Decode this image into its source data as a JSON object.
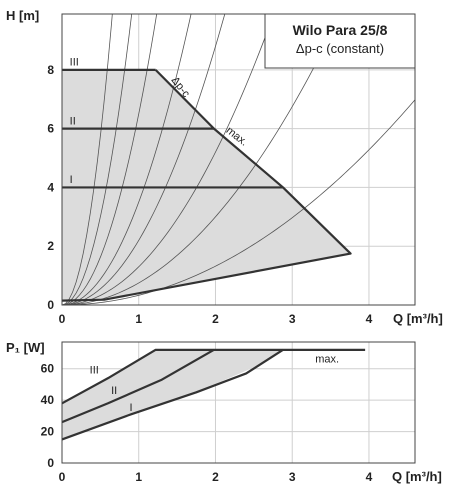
{
  "chart_data": [
    {
      "type": "area",
      "title": "Wilo Para 25/8",
      "subtitle": "Δp-c (constant)",
      "xlabel": "Q [m³/h]",
      "ylabel": "H [m]",
      "xlim": [
        0,
        4.6
      ],
      "ylim": [
        0,
        9.9
      ],
      "xticks": [
        "0",
        "1",
        "2",
        "3",
        "4"
      ],
      "yticks": [
        "0",
        "2",
        "4",
        "6",
        "8"
      ],
      "grid": true,
      "region": [
        [
          0,
          8
        ],
        [
          1.22,
          8
        ],
        [
          1.98,
          6
        ],
        [
          2.88,
          4
        ],
        [
          3.76,
          1.75
        ],
        [
          0.55,
          0.18
        ],
        [
          0,
          0.15
        ]
      ],
      "series": [
        {
          "name": "III",
          "x": [
            0,
            1.22
          ],
          "y": [
            8,
            8
          ]
        },
        {
          "name": "II",
          "x": [
            0,
            1.98
          ],
          "y": [
            6,
            6
          ]
        },
        {
          "name": "I",
          "x": [
            0,
            2.88
          ],
          "y": [
            4,
            4
          ]
        },
        {
          "name": "max.",
          "x": [
            1.22,
            1.98,
            2.88,
            3.76,
            0.55,
            0
          ],
          "y": [
            8,
            6,
            4,
            1.75,
            0.18,
            0.15
          ]
        }
      ],
      "system_curves_k": [
        0.33,
        0.75,
        1.3,
        2.2,
        3.5,
        6.5,
        12,
        23
      ],
      "annotations": [
        "Δp-c",
        "max."
      ]
    },
    {
      "type": "area",
      "xlabel": "Q [m³/h]",
      "ylabel": "P₁ [W]",
      "xlim": [
        0,
        4.6
      ],
      "ylim": [
        0,
        77
      ],
      "xticks": [
        "0",
        "1",
        "2",
        "3",
        "4"
      ],
      "yticks": [
        "0",
        "20",
        "40",
        "60"
      ],
      "grid": true,
      "region": [
        [
          0,
          38
        ],
        [
          1.22,
          72
        ],
        [
          2.88,
          72
        ],
        [
          2.6,
          63
        ],
        [
          1.75,
          45
        ],
        [
          0.9,
          31
        ],
        [
          0,
          15
        ]
      ],
      "series": [
        {
          "name": "III",
          "x": [
            0,
            0.6,
            1.22,
            3.95
          ],
          "y": [
            38,
            54,
            72,
            72
          ]
        },
        {
          "name": "II",
          "x": [
            0,
            0.6,
            1.3,
            1.98
          ],
          "y": [
            26,
            38,
            53,
            72
          ]
        },
        {
          "name": "I",
          "x": [
            0,
            0.9,
            1.75,
            2.4,
            2.88
          ],
          "y": [
            15,
            31,
            45,
            57,
            72
          ]
        }
      ],
      "max_label": "max."
    }
  ]
}
